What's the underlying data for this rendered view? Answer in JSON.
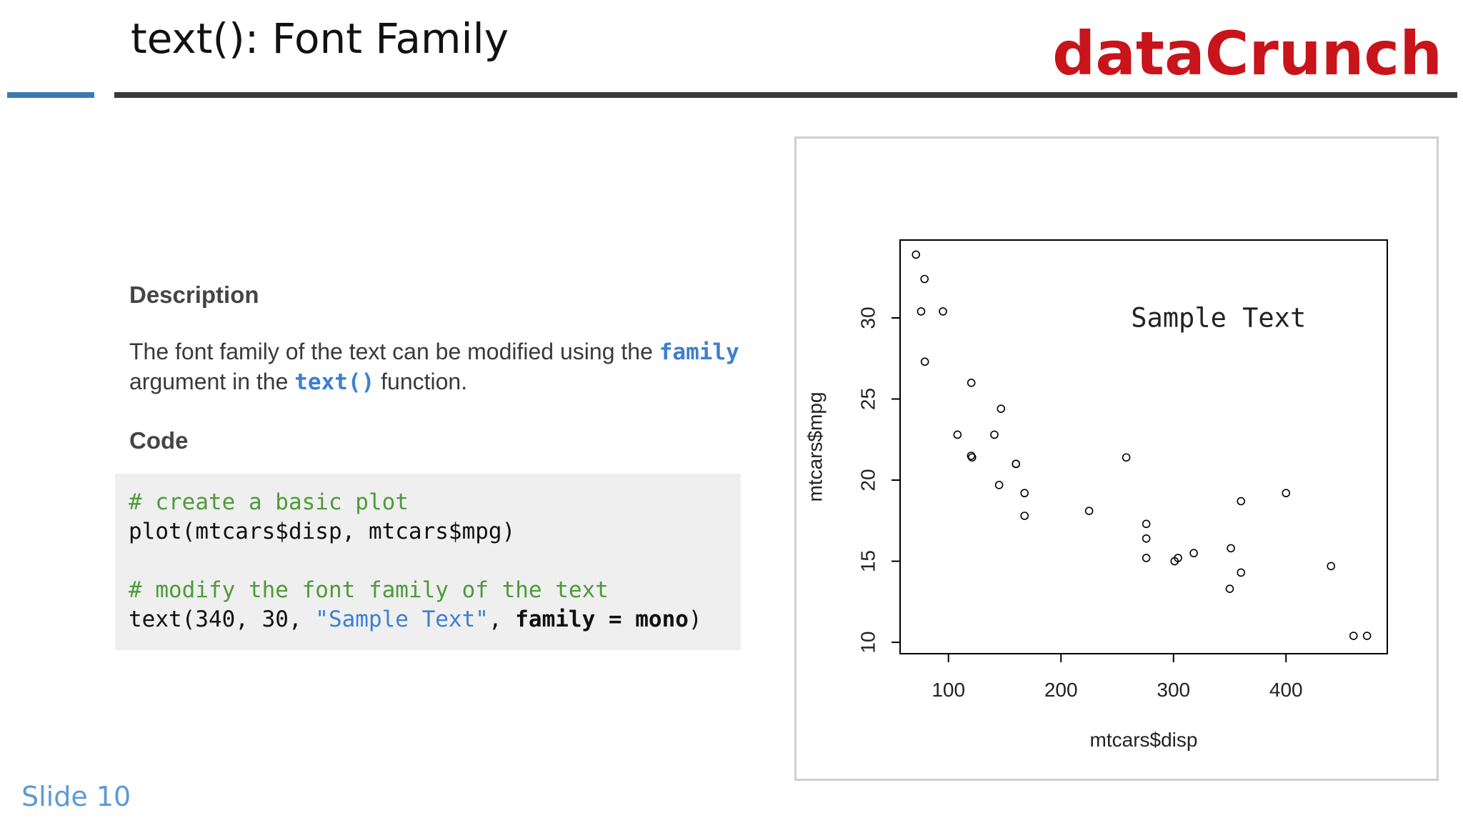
{
  "header": {
    "title": "text(): Font Family",
    "brand": "dataCrunch"
  },
  "description": {
    "heading": "Description",
    "text_1": "The font family of the text can be modified using the",
    "kw_family": "family",
    "text_2": "argument in the",
    "kw_text": "text()",
    "text_3": "function."
  },
  "code": {
    "heading": "Code",
    "line1": "# create a basic plot",
    "line2": "plot(mtcars$disp, mtcars$mpg)",
    "line4": "# modify the font family of the text",
    "line5_fn": "text(340, 30, ",
    "line5_str": "\"Sample Text\"",
    "line5_comma": ", ",
    "line5_arg": "family",
    "line5_eq": " = ",
    "line5_val": "mono",
    "line5_close": ")"
  },
  "chart_data": {
    "type": "scatter",
    "title": "",
    "xlabel": "mtcars$disp",
    "ylabel": "mtcars$mpg",
    "xlim": [
      57,
      490
    ],
    "ylim": [
      9.3,
      34.8
    ],
    "xticks": [
      "100",
      "200",
      "300",
      "400"
    ],
    "yticks": [
      "10",
      "15",
      "20",
      "25",
      "30"
    ],
    "annotation": {
      "x": 340,
      "y": 30,
      "text": "Sample Text",
      "font": "mono"
    },
    "grid": false,
    "points": [
      {
        "x": 160,
        "y": 21.0
      },
      {
        "x": 160,
        "y": 21.0
      },
      {
        "x": 108,
        "y": 22.8
      },
      {
        "x": 258,
        "y": 21.4
      },
      {
        "x": 360,
        "y": 18.7
      },
      {
        "x": 225,
        "y": 18.1
      },
      {
        "x": 360,
        "y": 14.3
      },
      {
        "x": 146.7,
        "y": 24.4
      },
      {
        "x": 140.8,
        "y": 22.8
      },
      {
        "x": 167.6,
        "y": 19.2
      },
      {
        "x": 167.6,
        "y": 17.8
      },
      {
        "x": 275.8,
        "y": 16.4
      },
      {
        "x": 275.8,
        "y": 17.3
      },
      {
        "x": 275.8,
        "y": 15.2
      },
      {
        "x": 472,
        "y": 10.4
      },
      {
        "x": 460,
        "y": 10.4
      },
      {
        "x": 440,
        "y": 14.7
      },
      {
        "x": 78.7,
        "y": 32.4
      },
      {
        "x": 75.7,
        "y": 30.4
      },
      {
        "x": 71.1,
        "y": 33.9
      },
      {
        "x": 120.1,
        "y": 21.5
      },
      {
        "x": 318,
        "y": 15.5
      },
      {
        "x": 304,
        "y": 15.2
      },
      {
        "x": 350,
        "y": 13.3
      },
      {
        "x": 400,
        "y": 19.2
      },
      {
        "x": 79,
        "y": 27.3
      },
      {
        "x": 120.3,
        "y": 26.0
      },
      {
        "x": 95.1,
        "y": 30.4
      },
      {
        "x": 351,
        "y": 15.8
      },
      {
        "x": 145,
        "y": 19.7
      },
      {
        "x": 301,
        "y": 15.0
      },
      {
        "x": 121,
        "y": 21.4
      }
    ]
  },
  "footer": {
    "slide_label": "Slide 10"
  }
}
